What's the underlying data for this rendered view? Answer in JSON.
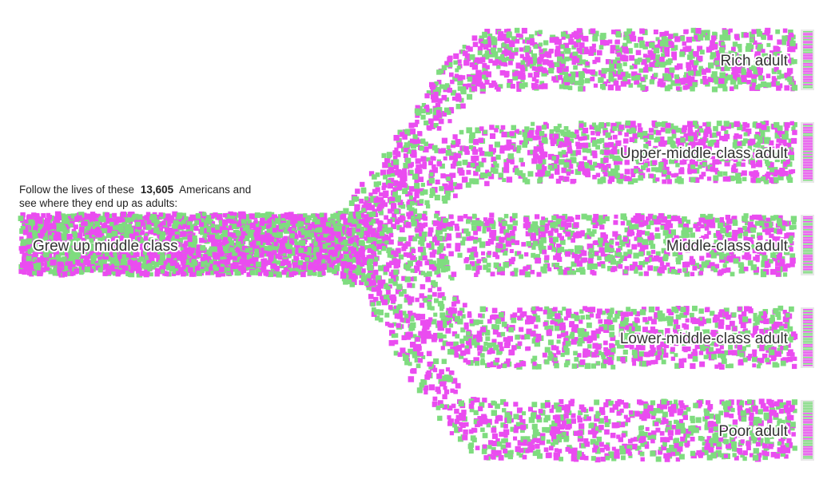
{
  "intro": {
    "line1_before": "Follow the lives of these",
    "count": "13,605",
    "line1_after": "Americans and",
    "line2": "see where they end up as adults:"
  },
  "colors": {
    "group_a": "#ea4cf0",
    "group_b": "#7fdc7f",
    "end_bar_bg": "#e8e8e8"
  },
  "chart_data": {
    "type": "flow-dot",
    "total_people": 13605,
    "source": {
      "label": "Grew up middle class"
    },
    "outcomes": [
      {
        "key": "rich",
        "label": "Rich adult"
      },
      {
        "key": "upper_middle",
        "label": "Upper-middle-class adult"
      },
      {
        "key": "middle",
        "label": "Middle-class adult"
      },
      {
        "key": "lower_middle",
        "label": "Lower-middle-class adult"
      },
      {
        "key": "poor",
        "label": "Poor adult"
      }
    ],
    "series": [
      {
        "color": "#ea4cf0"
      },
      {
        "color": "#7fdc7f"
      }
    ]
  }
}
